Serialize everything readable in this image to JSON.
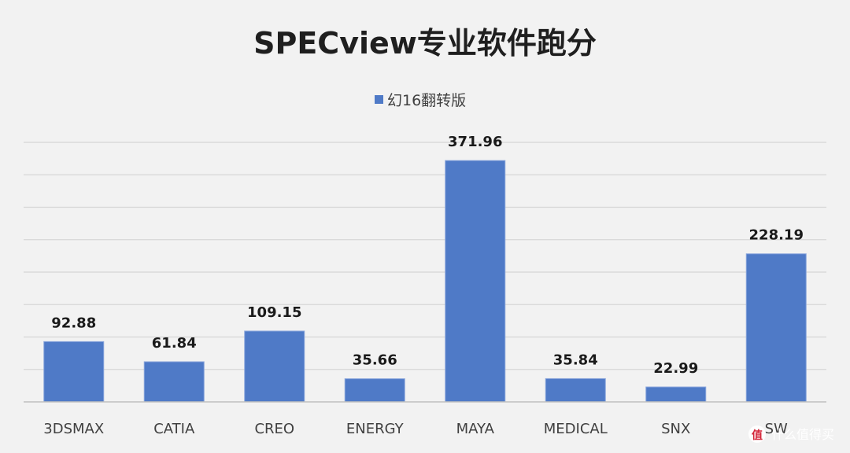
{
  "chart_data": {
    "type": "bar",
    "title": "SPECview专业软件跑分",
    "categories": [
      "3DSMAX",
      "CATIA",
      "CREO",
      "ENERGY",
      "MAYA",
      "MEDICAL",
      "SNX",
      "SW"
    ],
    "series": [
      {
        "name": "幻16翻转版",
        "values": [
          92.88,
          61.84,
          109.15,
          35.66,
          371.96,
          35.84,
          22.99,
          228.19
        ],
        "value_labels": [
          "92.88",
          "61.84",
          "109.15",
          "35.66",
          "371.96",
          "35.84",
          "22.99",
          "228.19"
        ]
      }
    ],
    "ylim": [
      0,
      400
    ],
    "gridlines": true,
    "legend_position": "top-center",
    "colors": {
      "bar": "#4f7ac7",
      "background": "#f2f2f2",
      "grid": "#d6d6d6"
    }
  },
  "watermark": {
    "text": "什么值得买",
    "icon": "zhi-logo-icon"
  }
}
